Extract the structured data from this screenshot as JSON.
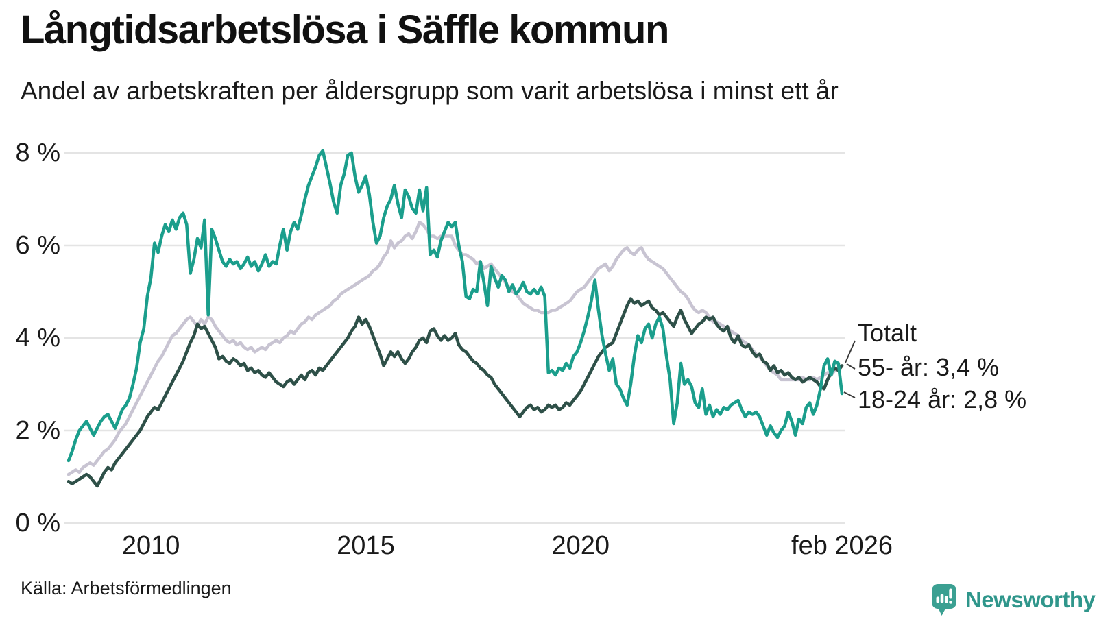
{
  "header": {
    "title": "Långtidsarbetslösa i Säffle kommun",
    "subtitle": "Andel av arbetskraften per åldersgrupp som varit arbetslösa i minst ett år"
  },
  "source": "Källa: Arbetsförmedlingen",
  "branding": {
    "name": "Newsworthy",
    "icon": "bar-chart-speech-bubble-icon",
    "text_color": "#2F968B",
    "icon_color": "#3BA092"
  },
  "colors": {
    "grid": "#E4E4E4",
    "text": "#1A1A1A",
    "connector": "#3A3A3A"
  },
  "chart_data": {
    "type": "line",
    "title": "Långtidsarbetslösa i Säffle kommun",
    "subtitle": "Andel av arbetskraften per åldersgrupp som varit arbetslösa i minst ett år",
    "unit": "% av arbetskraften",
    "frequency": "monthly",
    "x_start": "feb 2008",
    "x_end": "feb 2026",
    "ylim": [
      0,
      8.4
    ],
    "grid": "horizontal",
    "legend_position": "end-of-line-labels",
    "y_axis": [
      {
        "value": 0,
        "label": "0 %"
      },
      {
        "value": 2,
        "label": "2 %"
      },
      {
        "value": 4,
        "label": "4 %"
      },
      {
        "value": 6,
        "label": "6 %"
      },
      {
        "value": 8,
        "label": "8 %"
      }
    ],
    "x_axis": [
      {
        "label": "2010",
        "month_index": 23
      },
      {
        "label": "2015",
        "month_index": 83
      },
      {
        "label": "2020",
        "month_index": 143
      },
      {
        "label": "feb 2026",
        "month_index": 216
      }
    ],
    "series": [
      {
        "id": "55-ar",
        "name": "55- år",
        "color": "#C8C4D2",
        "end_label": "55- år: 3,4 %",
        "end_value": 3.4,
        "values": [
          1.05,
          1.1,
          1.15,
          1.1,
          1.2,
          1.25,
          1.3,
          1.25,
          1.35,
          1.45,
          1.55,
          1.6,
          1.7,
          1.8,
          1.95,
          2.05,
          2.15,
          2.3,
          2.45,
          2.6,
          2.75,
          2.9,
          3.05,
          3.2,
          3.35,
          3.5,
          3.6,
          3.75,
          3.9,
          4.05,
          4.1,
          4.2,
          4.3,
          4.4,
          4.45,
          4.35,
          4.25,
          4.4,
          4.3,
          4.45,
          4.4,
          4.25,
          4.15,
          4.05,
          3.95,
          3.9,
          3.95,
          3.85,
          3.9,
          3.8,
          3.75,
          3.8,
          3.7,
          3.75,
          3.8,
          3.75,
          3.85,
          3.9,
          3.95,
          3.9,
          4.0,
          4.05,
          4.15,
          4.1,
          4.2,
          4.3,
          4.35,
          4.45,
          4.4,
          4.5,
          4.55,
          4.6,
          4.65,
          4.7,
          4.8,
          4.85,
          4.95,
          5.0,
          5.05,
          5.1,
          5.15,
          5.2,
          5.25,
          5.3,
          5.35,
          5.45,
          5.5,
          5.6,
          5.75,
          5.85,
          6.1,
          5.95,
          6.05,
          6.1,
          6.2,
          6.25,
          6.15,
          6.3,
          6.5,
          6.45,
          6.35,
          6.2,
          6.2,
          6.15,
          6.2,
          6.2,
          6.2,
          6.2,
          6.0,
          5.9,
          5.8,
          5.8,
          5.75,
          5.7,
          5.6,
          5.65,
          5.5,
          5.55,
          5.6,
          5.5,
          5.4,
          5.3,
          5.2,
          5.1,
          5.0,
          4.95,
          4.85,
          4.75,
          4.7,
          4.65,
          4.6,
          4.6,
          4.55,
          4.55,
          4.55,
          4.6,
          4.6,
          4.65,
          4.7,
          4.75,
          4.8,
          4.9,
          5.0,
          5.05,
          5.1,
          5.2,
          5.3,
          5.4,
          5.5,
          5.55,
          5.6,
          5.45,
          5.55,
          5.7,
          5.8,
          5.9,
          5.95,
          5.85,
          5.8,
          5.9,
          5.95,
          5.8,
          5.7,
          5.65,
          5.6,
          5.55,
          5.5,
          5.4,
          5.3,
          5.2,
          5.1,
          5.0,
          4.95,
          4.85,
          4.7,
          4.6,
          4.55,
          4.6,
          4.55,
          4.45,
          4.35,
          4.35,
          4.3,
          4.25,
          4.2,
          4.15,
          4.1,
          4.05,
          3.95,
          3.9,
          3.85,
          3.75,
          3.65,
          3.6,
          3.5,
          3.4,
          3.3,
          3.25,
          3.2,
          3.1,
          3.1,
          3.1,
          3.1,
          3.1,
          3.1,
          3.15,
          3.1,
          3.1,
          3.15,
          3.1,
          3.15,
          3.2,
          3.25,
          3.2,
          3.3,
          3.35,
          3.4
        ]
      },
      {
        "id": "totalt",
        "name": "Totalt",
        "color": "#2E5048",
        "end_label": "Totalt",
        "end_value": 3.4,
        "values": [
          0.9,
          0.85,
          0.9,
          0.95,
          1.0,
          1.05,
          1.0,
          0.9,
          0.8,
          0.95,
          1.1,
          1.2,
          1.15,
          1.3,
          1.4,
          1.5,
          1.6,
          1.7,
          1.8,
          1.9,
          2.0,
          2.15,
          2.3,
          2.4,
          2.5,
          2.45,
          2.6,
          2.75,
          2.9,
          3.05,
          3.2,
          3.35,
          3.5,
          3.7,
          3.9,
          4.05,
          4.3,
          4.2,
          4.25,
          4.1,
          3.95,
          3.8,
          3.55,
          3.6,
          3.5,
          3.45,
          3.55,
          3.5,
          3.4,
          3.45,
          3.3,
          3.35,
          3.25,
          3.3,
          3.2,
          3.15,
          3.25,
          3.15,
          3.05,
          3.0,
          2.95,
          3.05,
          3.1,
          3.0,
          3.1,
          3.2,
          3.1,
          3.25,
          3.3,
          3.2,
          3.35,
          3.3,
          3.4,
          3.5,
          3.6,
          3.7,
          3.8,
          3.9,
          4.0,
          4.15,
          4.25,
          4.45,
          4.3,
          4.4,
          4.25,
          4.05,
          3.85,
          3.65,
          3.4,
          3.55,
          3.7,
          3.6,
          3.7,
          3.55,
          3.45,
          3.55,
          3.7,
          3.8,
          3.95,
          4.0,
          3.9,
          4.15,
          4.2,
          4.05,
          3.95,
          4.05,
          3.95,
          4.0,
          4.1,
          3.85,
          3.75,
          3.7,
          3.6,
          3.5,
          3.45,
          3.35,
          3.3,
          3.2,
          3.15,
          3.0,
          2.9,
          2.8,
          2.7,
          2.6,
          2.5,
          2.4,
          2.3,
          2.4,
          2.5,
          2.55,
          2.45,
          2.5,
          2.4,
          2.45,
          2.55,
          2.5,
          2.55,
          2.45,
          2.5,
          2.6,
          2.55,
          2.65,
          2.75,
          2.85,
          3.0,
          3.15,
          3.3,
          3.45,
          3.6,
          3.7,
          3.8,
          3.85,
          3.9,
          4.1,
          4.3,
          4.5,
          4.7,
          4.85,
          4.75,
          4.8,
          4.7,
          4.75,
          4.8,
          4.65,
          4.6,
          4.5,
          4.55,
          4.45,
          4.35,
          4.25,
          4.45,
          4.6,
          4.4,
          4.25,
          4.1,
          4.2,
          4.3,
          4.35,
          4.45,
          4.4,
          4.45,
          4.3,
          4.2,
          4.15,
          4.25,
          4.0,
          3.9,
          4.05,
          3.85,
          3.8,
          3.85,
          3.7,
          3.6,
          3.65,
          3.5,
          3.45,
          3.3,
          3.4,
          3.25,
          3.3,
          3.2,
          3.25,
          3.15,
          3.1,
          3.15,
          3.05,
          3.1,
          3.15,
          3.1,
          3.05,
          2.95,
          2.9,
          3.1,
          3.25,
          3.35,
          3.3,
          3.4
        ]
      },
      {
        "id": "18-24-ar",
        "name": "18-24 år",
        "color": "#1B9E8C",
        "end_label": "18-24 år: 2,8 %",
        "end_value": 2.8,
        "values": [
          1.35,
          1.55,
          1.8,
          2.0,
          2.1,
          2.2,
          2.05,
          1.9,
          2.05,
          2.2,
          2.3,
          2.35,
          2.2,
          2.05,
          2.25,
          2.45,
          2.55,
          2.7,
          3.0,
          3.35,
          3.9,
          4.2,
          4.9,
          5.3,
          6.05,
          5.85,
          6.2,
          6.45,
          6.3,
          6.55,
          6.35,
          6.6,
          6.7,
          6.45,
          5.4,
          5.7,
          6.15,
          5.95,
          6.55,
          4.5,
          6.35,
          6.15,
          5.9,
          5.65,
          5.55,
          5.7,
          5.6,
          5.65,
          5.5,
          5.6,
          5.75,
          5.55,
          5.65,
          5.45,
          5.6,
          5.8,
          5.55,
          5.65,
          5.6,
          6.0,
          6.35,
          5.9,
          6.3,
          6.5,
          6.35,
          6.65,
          7.0,
          7.3,
          7.5,
          7.7,
          7.95,
          8.05,
          7.7,
          7.35,
          6.95,
          6.7,
          7.3,
          7.55,
          7.95,
          8.0,
          7.5,
          7.15,
          7.3,
          7.5,
          7.1,
          6.5,
          6.05,
          6.2,
          6.6,
          6.85,
          7.0,
          7.3,
          6.9,
          6.6,
          7.2,
          7.05,
          6.8,
          6.7,
          7.2,
          6.75,
          7.25,
          5.8,
          5.9,
          5.75,
          6.1,
          6.3,
          6.5,
          6.4,
          6.5,
          6.0,
          5.65,
          4.9,
          4.85,
          5.05,
          5.0,
          5.65,
          5.2,
          4.7,
          5.55,
          5.3,
          5.1,
          5.35,
          5.25,
          5.0,
          5.15,
          4.95,
          5.05,
          5.2,
          5.0,
          4.95,
          5.05,
          4.95,
          5.1,
          4.9,
          3.25,
          3.3,
          3.2,
          3.35,
          3.3,
          3.45,
          3.35,
          3.6,
          3.7,
          3.9,
          4.15,
          4.45,
          4.8,
          5.25,
          4.6,
          4.05,
          3.65,
          3.3,
          3.55,
          3.0,
          2.9,
          2.7,
          2.55,
          3.0,
          3.6,
          4.05,
          3.9,
          4.2,
          4.3,
          4.0,
          4.3,
          4.45,
          4.2,
          3.6,
          3.1,
          2.15,
          2.6,
          3.45,
          3.0,
          3.1,
          2.95,
          2.6,
          2.5,
          2.9,
          2.35,
          2.55,
          2.3,
          2.45,
          2.35,
          2.5,
          2.45,
          2.55,
          2.6,
          2.65,
          2.45,
          2.3,
          2.4,
          2.35,
          2.4,
          2.3,
          2.1,
          1.9,
          2.1,
          1.95,
          1.85,
          2.0,
          2.1,
          2.4,
          2.2,
          1.9,
          2.25,
          2.15,
          2.5,
          2.6,
          2.35,
          2.55,
          2.9,
          3.4,
          3.55,
          3.2,
          3.5,
          3.45,
          2.8
        ]
      }
    ]
  }
}
